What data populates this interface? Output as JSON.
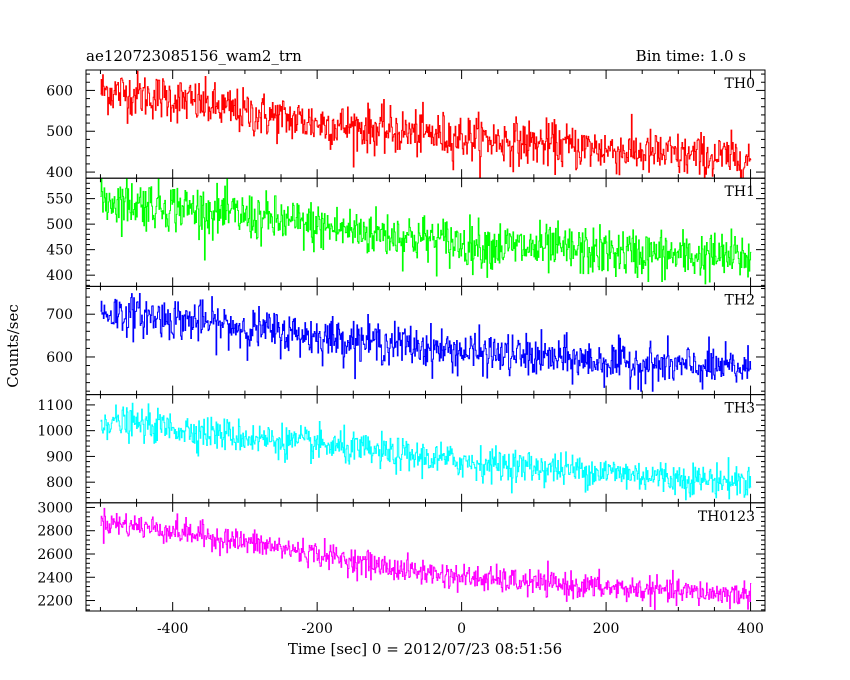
{
  "chart_data": {
    "type": "line",
    "title": "ae120723085156_wam2_trn",
    "bin_time": "Bin time: 1.0 s",
    "ylabel": "Counts/sec",
    "xlabel": "Time [sec] 0 = 2012/07/23 08:51:56",
    "xlim": [
      -520,
      420
    ],
    "x_ticks": [
      -400,
      -200,
      0,
      200,
      400
    ],
    "x_range": [
      -500,
      400
    ],
    "panels": [
      {
        "name": "TH0",
        "color": "#ff0000",
        "ylim": [
          385,
          650
        ],
        "y_ticks": [
          400,
          500,
          600
        ],
        "x": [
          -500,
          -400,
          -300,
          -200,
          -100,
          0,
          100,
          200,
          300,
          400
        ],
        "values": [
          600,
          580,
          545,
          520,
          500,
          485,
          470,
          455,
          440,
          432
        ],
        "noise": 28
      },
      {
        "name": "TH1",
        "color": "#00ff00",
        "ylim": [
          378,
          590
        ],
        "y_ticks": [
          400,
          450,
          500,
          550
        ],
        "x": [
          -500,
          -400,
          -300,
          -200,
          -100,
          0,
          100,
          200,
          300,
          400
        ],
        "values": [
          548,
          535,
          515,
          495,
          480,
          462,
          452,
          445,
          438,
          435
        ],
        "noise": 24
      },
      {
        "name": "TH2",
        "color": "#0000ff",
        "ylim": [
          512,
          765
        ],
        "y_ticks": [
          600,
          700
        ],
        "x": [
          -500,
          -400,
          -300,
          -200,
          -100,
          0,
          100,
          200,
          300,
          400
        ],
        "values": [
          705,
          690,
          668,
          648,
          632,
          612,
          600,
          588,
          578,
          572
        ],
        "noise": 24
      },
      {
        "name": "TH3",
        "color": "#00ffff",
        "ylim": [
          720,
          1140
        ],
        "y_ticks": [
          800,
          900,
          1000,
          1100
        ],
        "x": [
          -500,
          -400,
          -300,
          -200,
          -100,
          0,
          100,
          200,
          300,
          400
        ],
        "values": [
          1040,
          1010,
          975,
          945,
          910,
          880,
          858,
          840,
          815,
          800
        ],
        "noise": 32
      },
      {
        "name": "TH0123",
        "color": "#ff00ff",
        "ylim": [
          2110,
          3040
        ],
        "y_ticks": [
          2200,
          2400,
          2600,
          2800,
          3000
        ],
        "x": [
          -500,
          -400,
          -300,
          -200,
          -100,
          0,
          100,
          200,
          300,
          400
        ],
        "values": [
          2880,
          2800,
          2700,
          2600,
          2480,
          2400,
          2350,
          2310,
          2275,
          2250
        ],
        "noise": 55
      }
    ]
  }
}
